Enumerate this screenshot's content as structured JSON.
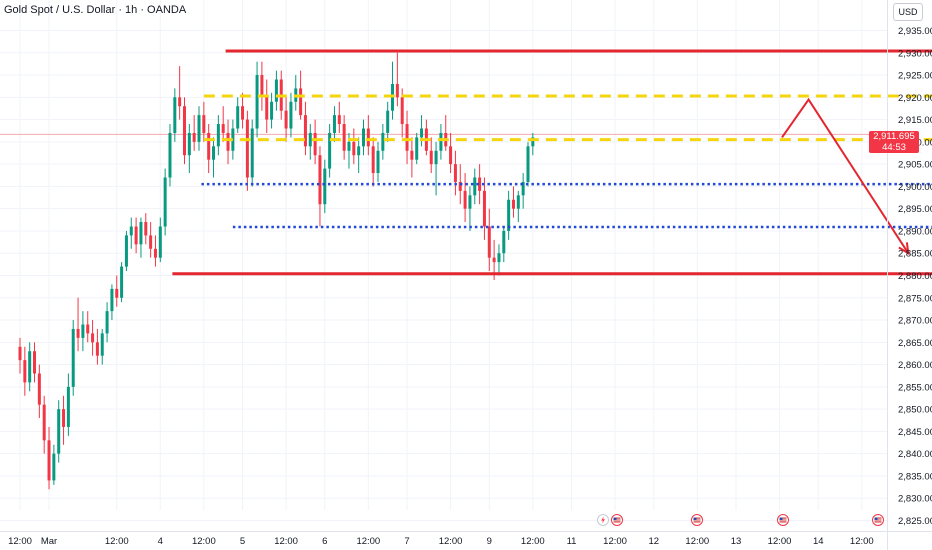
{
  "header": {
    "title": "Gold Spot / U.S. Dollar · 1h · OANDA",
    "currency": "USD"
  },
  "price_badge": {
    "price": "2,911.695",
    "countdown": "44:53"
  },
  "colors": {
    "up": "#089981",
    "down": "#f23645",
    "resistance": "#e4262f",
    "yellow_zone": "#f5d60c",
    "blue_zone": "#2148d6",
    "projection": "#e4262f",
    "current_price_line": "#f4a8ae"
  },
  "icons": [
    "lightning-event-icon",
    "us-flag-event-icon"
  ],
  "chart_data": {
    "type": "candlestick",
    "title": "Gold Spot / U.S. Dollar · 1h · OANDA",
    "ylim": [
      2824,
      2940
    ],
    "y_ticks": [
      2825,
      2830,
      2835,
      2840,
      2845,
      2850,
      2855,
      2860,
      2865,
      2870,
      2875,
      2880,
      2885,
      2890,
      2895,
      2900,
      2905,
      2910,
      2915,
      2920,
      2925,
      2930,
      2935
    ],
    "y_tick_labels": [
      "2,825.000",
      "2,830.000",
      "2,835.000",
      "2,840.000",
      "2,845.000",
      "2,850.000",
      "2,855.000",
      "2,860.000",
      "2,865.000",
      "2,870.000",
      "2,875.000",
      "2,880.000",
      "2,885.000",
      "2,890.000",
      "2,895.000",
      "2,900.000",
      "2,905.000",
      "2,910.000",
      "2,915.000",
      "2,920.000",
      "2,925.000",
      "2,930.000",
      "2,935.000"
    ],
    "x_tick_labels": [
      "12:00",
      "Mar",
      "12:00",
      "4",
      "12:00",
      "5",
      "12:00",
      "6",
      "12:00",
      "7",
      "12:00",
      "9",
      "12:00",
      "11",
      "12:00",
      "12",
      "12:00",
      "13",
      "12:00",
      "14",
      "12:00"
    ],
    "x_tick_index": [
      0,
      6,
      20,
      29,
      38,
      46,
      55,
      63,
      72,
      80,
      89,
      97,
      106,
      114,
      123,
      131,
      140,
      148,
      157,
      165,
      174
    ],
    "candles": [
      [
        2864,
        2866,
        2858,
        2861
      ],
      [
        2861,
        2864,
        2853,
        2856
      ],
      [
        2856,
        2865,
        2854,
        2863
      ],
      [
        2863,
        2865,
        2856,
        2858
      ],
      [
        2858,
        2860,
        2848,
        2851
      ],
      [
        2851,
        2853,
        2840,
        2843
      ],
      [
        2843,
        2846,
        2832,
        2834
      ],
      [
        2834,
        2842,
        2833,
        2840
      ],
      [
        2840,
        2852,
        2838,
        2850
      ],
      [
        2850,
        2853,
        2842,
        2846
      ],
      [
        2846,
        2858,
        2844,
        2855
      ],
      [
        2855,
        2870,
        2853,
        2868
      ],
      [
        2868,
        2875,
        2863,
        2866
      ],
      [
        2866,
        2872,
        2863,
        2869
      ],
      [
        2869,
        2872,
        2865,
        2867
      ],
      [
        2867,
        2870,
        2862,
        2865
      ],
      [
        2865,
        2868,
        2860,
        2862
      ],
      [
        2862,
        2868,
        2860,
        2867
      ],
      [
        2867,
        2874,
        2865,
        2872
      ],
      [
        2872,
        2878,
        2870,
        2877
      ],
      [
        2877,
        2880,
        2873,
        2875
      ],
      [
        2875,
        2883,
        2874,
        2882
      ],
      [
        2882,
        2890,
        2881,
        2889
      ],
      [
        2889,
        2893,
        2886,
        2891
      ],
      [
        2891,
        2893,
        2885,
        2887
      ],
      [
        2887,
        2893,
        2884,
        2892
      ],
      [
        2892,
        2894,
        2887,
        2889
      ],
      [
        2889,
        2892,
        2884,
        2886
      ],
      [
        2886,
        2889,
        2882,
        2884
      ],
      [
        2884,
        2893,
        2883,
        2891
      ],
      [
        2891,
        2904,
        2889,
        2902
      ],
      [
        2902,
        2914,
        2900,
        2912
      ],
      [
        2912,
        2922,
        2910,
        2920
      ],
      [
        2920,
        2927,
        2915,
        2918
      ],
      [
        2918,
        2920,
        2905,
        2907
      ],
      [
        2907,
        2914,
        2903,
        2912
      ],
      [
        2912,
        2916,
        2908,
        2910
      ],
      [
        2910,
        2918,
        2908,
        2916
      ],
      [
        2916,
        2919,
        2910,
        2912
      ],
      [
        2912,
        2914,
        2903,
        2906
      ],
      [
        2906,
        2911,
        2902,
        2909
      ],
      [
        2909,
        2916,
        2907,
        2914
      ],
      [
        2914,
        2918,
        2910,
        2912
      ],
      [
        2912,
        2915,
        2905,
        2908
      ],
      [
        2908,
        2915,
        2906,
        2913
      ],
      [
        2913,
        2920,
        2912,
        2918
      ],
      [
        2918,
        2921,
        2913,
        2915
      ],
      [
        2915,
        2917,
        2899,
        2902
      ],
      [
        2902,
        2915,
        2900,
        2913
      ],
      [
        2913,
        2928,
        2911,
        2925
      ],
      [
        2925,
        2928,
        2917,
        2920
      ],
      [
        2920,
        2924,
        2912,
        2915
      ],
      [
        2915,
        2921,
        2913,
        2919
      ],
      [
        2919,
        2926,
        2917,
        2924
      ],
      [
        2924,
        2926,
        2915,
        2917
      ],
      [
        2917,
        2920,
        2910,
        2913
      ],
      [
        2913,
        2921,
        2911,
        2919
      ],
      [
        2919,
        2925,
        2917,
        2922
      ],
      [
        2922,
        2926,
        2915,
        2916
      ],
      [
        2916,
        2919,
        2907,
        2909
      ],
      [
        2909,
        2914,
        2906,
        2912
      ],
      [
        2912,
        2915,
        2905,
        2907
      ],
      [
        2907,
        2909,
        2891,
        2896
      ],
      [
        2896,
        2906,
        2894,
        2904
      ],
      [
        2904,
        2914,
        2902,
        2912
      ],
      [
        2912,
        2918,
        2910,
        2916
      ],
      [
        2916,
        2919,
        2912,
        2914
      ],
      [
        2914,
        2916,
        2906,
        2908
      ],
      [
        2908,
        2912,
        2904,
        2910
      ],
      [
        2910,
        2913,
        2905,
        2907
      ],
      [
        2907,
        2911,
        2903,
        2909
      ],
      [
        2909,
        2915,
        2907,
        2913
      ],
      [
        2913,
        2916,
        2907,
        2909
      ],
      [
        2909,
        2911,
        2900,
        2903
      ],
      [
        2903,
        2910,
        2901,
        2908
      ],
      [
        2908,
        2914,
        2906,
        2912
      ],
      [
        2912,
        2919,
        2910,
        2917
      ],
      [
        2917,
        2928,
        2915,
        2923
      ],
      [
        2923,
        2930,
        2918,
        2920
      ],
      [
        2920,
        2922,
        2911,
        2914
      ],
      [
        2914,
        2917,
        2905,
        2908
      ],
      [
        2908,
        2911,
        2902,
        2906
      ],
      [
        2906,
        2912,
        2905,
        2911
      ],
      [
        2911,
        2916,
        2909,
        2913
      ],
      [
        2913,
        2915,
        2907,
        2908
      ],
      [
        2908,
        2911,
        2903,
        2905
      ],
      [
        2905,
        2910,
        2898,
        2908
      ],
      [
        2908,
        2914,
        2906,
        2912
      ],
      [
        2912,
        2916,
        2908,
        2909
      ],
      [
        2909,
        2912,
        2903,
        2905
      ],
      [
        2905,
        2908,
        2898,
        2901
      ],
      [
        2901,
        2905,
        2896,
        2899
      ],
      [
        2899,
        2903,
        2892,
        2895
      ],
      [
        2895,
        2900,
        2890,
        2898
      ],
      [
        2898,
        2904,
        2896,
        2902
      ],
      [
        2902,
        2905,
        2896,
        2899
      ],
      [
        2899,
        2902,
        2888,
        2891
      ],
      [
        2891,
        2895,
        2881,
        2884
      ],
      [
        2884,
        2888,
        2879,
        2883
      ],
      [
        2883,
        2887,
        2880,
        2885
      ],
      [
        2885,
        2891,
        2883,
        2890
      ],
      [
        2890,
        2899,
        2888,
        2897
      ],
      [
        2897,
        2900,
        2893,
        2895
      ],
      [
        2895,
        2899,
        2892,
        2898
      ],
      [
        2898,
        2903,
        2895,
        2901
      ],
      [
        2901,
        2910,
        2900,
        2909
      ],
      [
        2909,
        2912,
        2907,
        2911
      ]
    ],
    "resistance_lines": [
      {
        "y": 2930.4,
        "x_from": 42.5,
        "x_to": 195.5
      },
      {
        "y": 2880.4,
        "x_from": 31.5,
        "x_to": 193.0
      }
    ],
    "yellow_zone_lines": [
      {
        "y": 2920.3,
        "x_from": 38,
        "x_to": 193
      },
      {
        "y": 2910.5,
        "x_from": 38,
        "x_to": 193
      }
    ],
    "blue_zone_lines": [
      {
        "y": 2900.5,
        "x_from": 37.5,
        "x_to": 192
      },
      {
        "y": 2890.9,
        "x_from": 44,
        "x_to": 192
      }
    ],
    "current_price": 2911.695,
    "projection_path": [
      [
        157.5,
        2911.0
      ],
      [
        163.0,
        2919.5
      ],
      [
        183.6,
        2885.0
      ]
    ]
  }
}
